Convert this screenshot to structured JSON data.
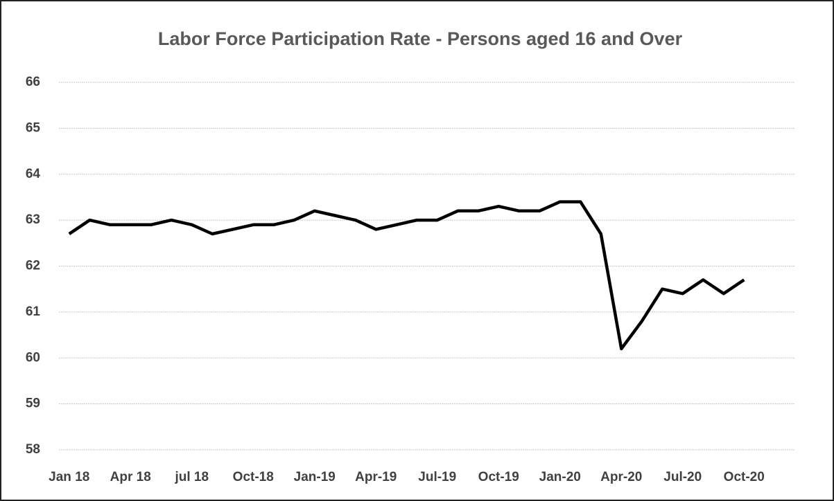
{
  "chart_data": {
    "type": "line",
    "title": "Labor Force Participation Rate - Persons aged 16 and Over",
    "categories": [
      "Jan 18",
      null,
      null,
      "Apr 18",
      null,
      null,
      "jul 18",
      null,
      null,
      "Oct-18",
      null,
      null,
      "Jan-19",
      null,
      null,
      "Apr-19",
      null,
      null,
      "Jul-19",
      null,
      null,
      "Oct-19",
      null,
      null,
      "Jan-20",
      null,
      null,
      "Apr-20",
      null,
      null,
      "Jul-20",
      null,
      null,
      "Oct-20",
      null,
      null
    ],
    "series": [
      {
        "name": "Labor Force Participation Rate",
        "color": "#000000",
        "values": [
          62.7,
          63.0,
          62.9,
          62.9,
          62.9,
          63.0,
          62.9,
          62.7,
          62.8,
          62.9,
          62.9,
          63.0,
          63.2,
          63.1,
          63.0,
          62.8,
          62.9,
          63.0,
          63.0,
          63.2,
          63.2,
          63.3,
          63.2,
          63.2,
          63.4,
          63.4,
          62.7,
          60.2,
          60.8,
          61.5,
          61.4,
          61.7,
          61.4,
          61.7,
          null,
          null
        ]
      }
    ],
    "ylim": [
      58,
      66
    ],
    "yticks": [
      58,
      59,
      60,
      61,
      62,
      63,
      64,
      65,
      66
    ],
    "grid": true
  }
}
